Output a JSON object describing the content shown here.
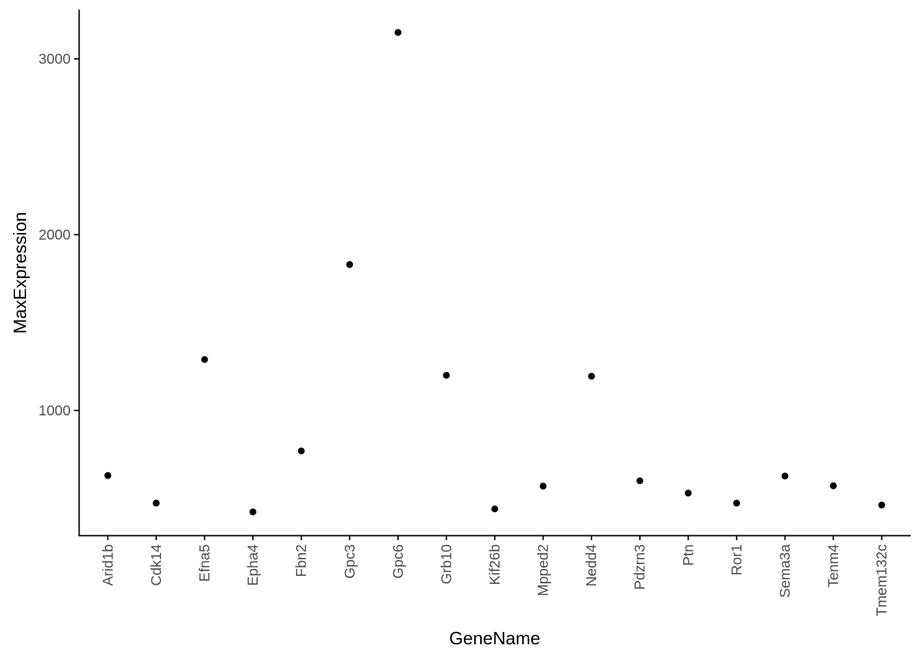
{
  "chart_data": {
    "type": "scatter",
    "title": "",
    "xlabel": "GeneName",
    "ylabel": "MaxExpression",
    "x": [
      "Arid1b",
      "Cdk14",
      "Efna5",
      "Epha4",
      "Fbn2",
      "Gpc3",
      "Gpc6",
      "Grb10",
      "Kif26b",
      "Mpped2",
      "Nedd4",
      "Pdzrn3",
      "Ptn",
      "Ror1",
      "Sema3a",
      "Tenm4",
      "Tmem132c"
    ],
    "y": [
      630,
      473,
      1290,
      423,
      770,
      1830,
      3150,
      1200,
      440,
      570,
      1195,
      600,
      530,
      473,
      627,
      572,
      462
    ],
    "ylim": [
      290,
      3280
    ],
    "yticks": [
      1000,
      2000,
      3000
    ],
    "grid": false,
    "legend": "none",
    "point_color": "#000000",
    "axis_color": "#000000",
    "tick_label_color": "#4d4d4d"
  }
}
